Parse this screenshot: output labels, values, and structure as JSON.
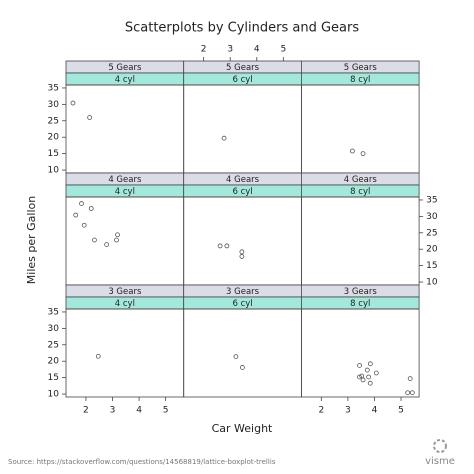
{
  "chart_data": {
    "type": "scatter",
    "title": "Scatterplots by Cylinders and Gears",
    "x_label": "Car Weight",
    "y_label": "Miles per Gallon",
    "xlim": [
      1.25,
      5.68
    ],
    "ylim": [
      9.1,
      35.9
    ],
    "xticks": [
      2,
      3,
      4,
      5
    ],
    "yticks": [
      10,
      15,
      20,
      25,
      30,
      35
    ],
    "point_color": "#555555",
    "gear_strip_color": "#dcdce6",
    "cyl_strip_color": "#a3e8da",
    "panels": [
      {
        "gear": "5 Gears",
        "cyl": "4 cyl",
        "x": [
          2.14,
          1.513
        ],
        "y": [
          26.0,
          30.4
        ]
      },
      {
        "gear": "5 Gears",
        "cyl": "6 cyl",
        "x": [
          2.77
        ],
        "y": [
          19.7
        ]
      },
      {
        "gear": "5 Gears",
        "cyl": "8 cyl",
        "x": [
          3.17,
          3.57
        ],
        "y": [
          15.8,
          15.0
        ]
      },
      {
        "gear": "4 Gears",
        "cyl": "4 cyl",
        "x": [
          2.32,
          3.19,
          3.15,
          2.2,
          1.615,
          1.835,
          1.935,
          2.78
        ],
        "y": [
          22.8,
          24.4,
          22.8,
          32.4,
          30.4,
          33.9,
          27.3,
          21.4
        ]
      },
      {
        "gear": "4 Gears",
        "cyl": "6 cyl",
        "x": [
          2.62,
          2.875,
          3.44,
          3.44
        ],
        "y": [
          21.0,
          21.0,
          19.2,
          17.8
        ]
      },
      {
        "gear": "4 Gears",
        "cyl": "8 cyl",
        "x": [],
        "y": []
      },
      {
        "gear": "3 Gears",
        "cyl": "4 cyl",
        "x": [
          2.465
        ],
        "y": [
          21.5
        ]
      },
      {
        "gear": "3 Gears",
        "cyl": "6 cyl",
        "x": [
          3.215,
          3.46
        ],
        "y": [
          21.4,
          18.1
        ]
      },
      {
        "gear": "3 Gears",
        "cyl": "8 cyl",
        "x": [
          3.44,
          3.57,
          4.07,
          3.73,
          3.78,
          5.25,
          5.424,
          5.345,
          3.52,
          3.435,
          3.84,
          3.845
        ],
        "y": [
          18.7,
          14.3,
          16.4,
          17.3,
          15.2,
          10.4,
          10.4,
          14.7,
          15.5,
          15.2,
          13.3,
          19.2
        ]
      }
    ]
  },
  "source": "Source: https://stackoverflow.com/questions/14568819/lattice-boxplot-trellis",
  "logo": "visme"
}
